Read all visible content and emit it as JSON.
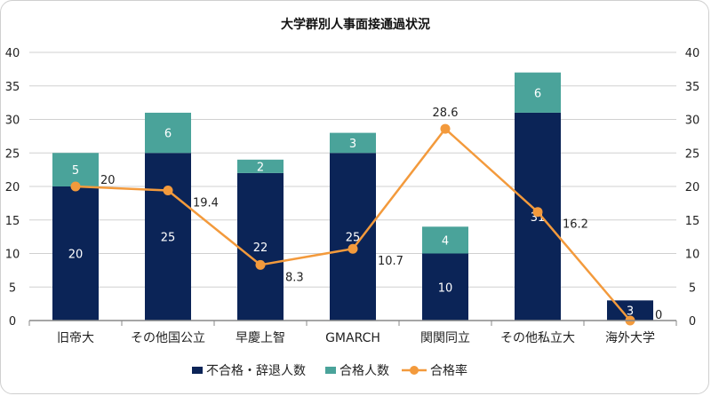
{
  "chart_data": {
    "type": "bar",
    "stacked": true,
    "title": "大学群別人事面接通過状況",
    "categories": [
      "旧帝大",
      "その他国公立",
      "早慶上智",
      "GMARCH",
      "関関同立",
      "その他私立大",
      "海外大学"
    ],
    "series": [
      {
        "name": "不合格・辞退人数",
        "type": "bar",
        "axis": "left",
        "color": "#0b2457",
        "values": [
          20,
          25,
          22,
          25,
          10,
          31,
          3
        ]
      },
      {
        "name": "合格人数",
        "type": "bar",
        "axis": "left",
        "color": "#4aa39a",
        "values": [
          5,
          6,
          2,
          3,
          4,
          6,
          0
        ]
      },
      {
        "name": "合格率",
        "type": "line",
        "axis": "right",
        "color": "#f39a3c",
        "values": [
          20,
          19.4,
          8.3,
          10.7,
          28.6,
          16.2,
          0
        ]
      }
    ],
    "ylim": [
      0,
      40
    ],
    "y2lim": [
      0,
      40
    ],
    "yticks": [
      0,
      5,
      10,
      15,
      20,
      25,
      30,
      35,
      40
    ],
    "grid": true,
    "legend": "bottom"
  }
}
